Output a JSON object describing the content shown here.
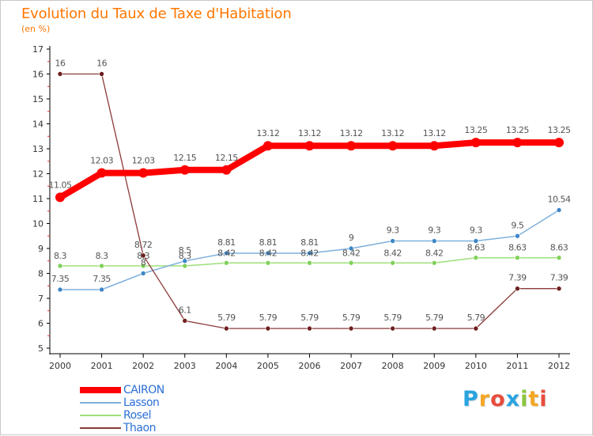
{
  "title": "Evolution du Taux de Taxe d'Habitation",
  "subtitle": "(en %)",
  "brand": {
    "text": "Proxiti",
    "letters": [
      {
        "ch": "P",
        "color": "#2aa4e0"
      },
      {
        "ch": "r",
        "color": "#f5a623"
      },
      {
        "ch": "o",
        "color": "#e84c3d"
      },
      {
        "ch": "x",
        "color": "#2aa4e0"
      },
      {
        "ch": "i",
        "color": "#8cc63f"
      },
      {
        "ch": "t",
        "color": "#f5a623"
      },
      {
        "ch": "i",
        "color": "#e84c3d"
      }
    ]
  },
  "chart_data": {
    "type": "line",
    "x": [
      "2000",
      "2001",
      "2002",
      "2003",
      "2004",
      "2005",
      "2006",
      "2007",
      "2008",
      "2009",
      "2010",
      "2011",
      "2012"
    ],
    "yticks": [
      "5",
      "6",
      "7",
      "8",
      "9",
      "10",
      "11",
      "12",
      "13",
      "14",
      "15",
      "16",
      "17"
    ],
    "ylim": [
      5,
      17
    ],
    "grid": false,
    "legend_position": "bottom-left",
    "series": [
      {
        "name": "CAIRON",
        "color": "#ff0000",
        "values": [
          11.05,
          12.03,
          12.03,
          12.15,
          12.15,
          13.12,
          13.12,
          13.12,
          13.12,
          13.12,
          13.25,
          13.25,
          13.25
        ],
        "labels": [
          "11.05",
          "12.03",
          "12.03",
          "12.15",
          "12.15",
          "13.12",
          "13.12",
          "13.12",
          "13.12",
          "13.12",
          "13.25",
          "13.25",
          "13.25"
        ]
      },
      {
        "name": "Lasson",
        "color": "#7fb0dd",
        "marker_color": "#3d86c6",
        "values": [
          7.35,
          7.35,
          8.0,
          8.5,
          8.81,
          8.81,
          8.81,
          9.0,
          9.3,
          9.3,
          9.3,
          9.5,
          10.54
        ],
        "labels": [
          "7.35",
          "7.35",
          "8",
          "8.5",
          "8.81",
          "8.81",
          "8.81",
          "9",
          "9.3",
          "9.3",
          "9.3",
          "9.5",
          "10.54"
        ]
      },
      {
        "name": "Rosel",
        "color": "#9de07a",
        "marker_color": "#7fd15a",
        "values": [
          8.3,
          8.3,
          8.3,
          8.3,
          8.42,
          8.42,
          8.42,
          8.42,
          8.42,
          8.42,
          8.63,
          8.63,
          8.63
        ],
        "labels": [
          "8.3",
          "8.3",
          "8.3",
          "8.3",
          "8.42",
          "8.42",
          "8.42",
          "8.42",
          "8.42",
          "8.42",
          "8.63",
          "8.63",
          "8.63"
        ]
      },
      {
        "name": "Thaon",
        "color": "#8b3a3a",
        "marker_color": "#6e1f1f",
        "values": [
          16,
          16,
          8.72,
          6.1,
          5.79,
          5.79,
          5.79,
          5.79,
          5.79,
          5.79,
          5.79,
          7.39,
          7.39
        ],
        "labels": [
          "16",
          "16",
          "8.72",
          "6.1",
          "5.79",
          "5.79",
          "5.79",
          "5.79",
          "5.79",
          "5.79",
          "5.79",
          "7.39",
          "7.39"
        ]
      }
    ]
  }
}
